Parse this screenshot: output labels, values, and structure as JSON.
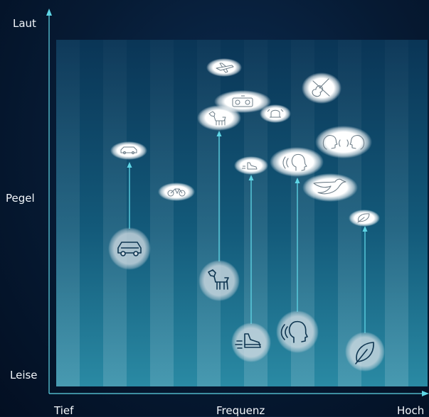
{
  "axes": {
    "y_top": "Laut",
    "y_mid": "Pegel",
    "y_bottom": "Leise",
    "x_left": "Tief",
    "x_mid": "Frequenz",
    "x_right": "Hoch"
  },
  "colors": {
    "accent": "#5fd6e6",
    "panel_dark": "#0e4a6a",
    "panel_light": "#2f8ea8",
    "bubble": "#ffffff",
    "circle": "#c9d4dc"
  },
  "sources": [
    {
      "id": "car",
      "icon": "car-icon",
      "has_circle": true,
      "has_arrow": true
    },
    {
      "id": "bicycle",
      "icon": "bicycle-icon",
      "has_circle": false,
      "has_arrow": false
    },
    {
      "id": "dog",
      "icon": "dog-icon",
      "has_circle": true,
      "has_arrow": true
    },
    {
      "id": "airplane",
      "icon": "airplane-icon",
      "has_circle": false,
      "has_arrow": false
    },
    {
      "id": "radio",
      "icon": "radio-icon",
      "has_circle": false,
      "has_arrow": false
    },
    {
      "id": "alarm",
      "icon": "alarm-bell-icon",
      "has_circle": false,
      "has_arrow": false
    },
    {
      "id": "footsteps",
      "icon": "shoe-icon",
      "has_circle": true,
      "has_arrow": true
    },
    {
      "id": "speaking",
      "icon": "speaking-head-icon",
      "has_circle": true,
      "has_arrow": true
    },
    {
      "id": "conversation",
      "icon": "conversation-icon",
      "has_circle": false,
      "has_arrow": false
    },
    {
      "id": "violin",
      "icon": "violin-icon",
      "has_circle": false,
      "has_arrow": false
    },
    {
      "id": "bird",
      "icon": "bird-icon",
      "has_circle": false,
      "has_arrow": false
    },
    {
      "id": "leaf",
      "icon": "leaf-icon",
      "has_circle": true,
      "has_arrow": true
    }
  ]
}
